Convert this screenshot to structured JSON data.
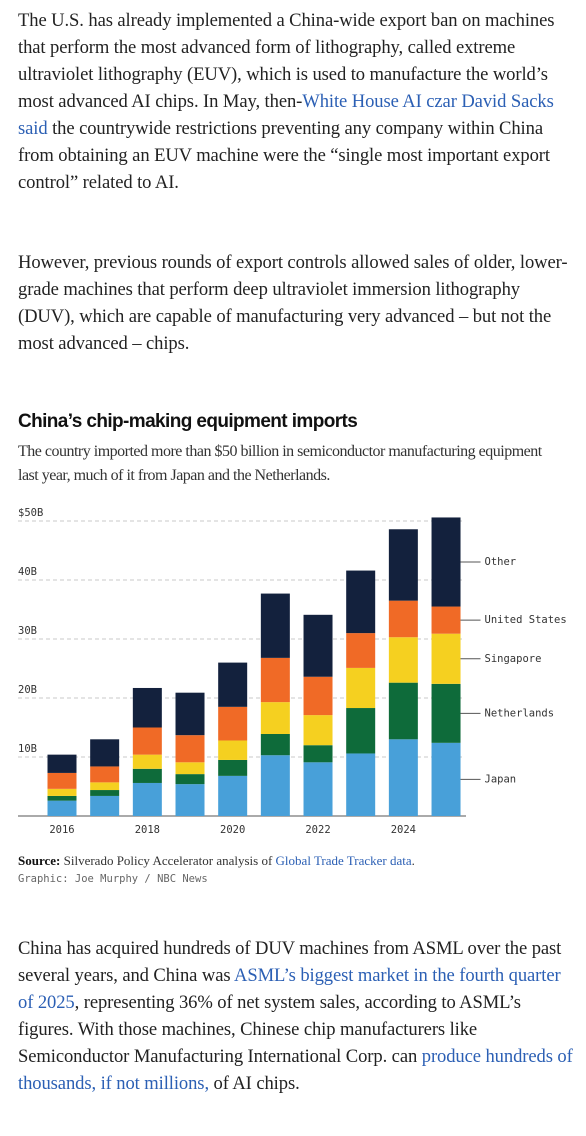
{
  "article": {
    "paragraphs_before": [
      [
        {
          "text": "The U.S. has already implemented a China-wide export ban on machines that perform the most advanced form of lithography, called extreme ultraviolet lithography (EUV), which is used to manufacture the world’s most advanced AI chips. In May, then-"
        },
        {
          "text": "White House AI czar David Sacks said",
          "link": true
        },
        {
          "text": " the countrywide restrictions preventing any company within China from obtaining an EUV machine were the “single most important export control” related to AI."
        }
      ],
      [
        {
          "text": "However, previous rounds of export controls allowed sales of older, lower-grade machines that perform deep ultraviolet immersion lithography (DUV), which are capable of manufacturing very advanced – but not the most advanced – chips."
        }
      ]
    ],
    "paragraphs_after": [
      [
        {
          "text": "China has acquired hundreds of DUV machines from ASML over the past several years, and China was "
        },
        {
          "text": "ASML’s biggest market in the fourth quarter of 2025",
          "link": true
        },
        {
          "text": ", representing 36% of net system sales, according to ASML’s figures. With those machines, Chinese chip manufacturers like Semiconductor Manufacturing International Corp. can "
        },
        {
          "text": "produce hundreds of thousands, if not millions,",
          "link": true
        },
        {
          "text": " of AI chips."
        }
      ]
    ]
  },
  "chart_data": {
    "type": "stacked_bar",
    "title": "China’s chip-making equipment imports",
    "subtitle": "The country imported more than $50 billion in semiconductor manufacturing equipment last year, much of it from Japan and the Netherlands.",
    "source_label": "Source:",
    "source_text": "Silverado Policy Accelerator analysis of",
    "source_link": "Global Trade Tracker data",
    "source_end": ".",
    "credit": "Graphic: Joe Murphy / NBC News",
    "categories": [
      "2016",
      null,
      "2018",
      null,
      "2020",
      null,
      "2022",
      null,
      "2024",
      null
    ],
    "series": [
      {
        "name": "Japan",
        "color": "#48a0d9",
        "values": [
          2.6,
          3.4,
          5.6,
          5.4,
          6.8,
          10.3,
          9.1,
          10.6,
          13.0,
          12.4
        ]
      },
      {
        "name": "Netherlands",
        "color": "#0e6b3a",
        "values": [
          0.8,
          1.0,
          2.4,
          1.7,
          2.7,
          3.6,
          2.9,
          7.7,
          9.6,
          10.0
        ]
      },
      {
        "name": "Singapore",
        "color": "#f5d020",
        "values": [
          1.2,
          1.3,
          2.4,
          2.0,
          3.3,
          5.4,
          5.1,
          6.8,
          7.7,
          8.5
        ]
      },
      {
        "name": "United States",
        "color": "#f06a26",
        "values": [
          2.7,
          2.7,
          4.6,
          4.6,
          5.7,
          7.5,
          6.5,
          5.9,
          6.2,
          4.6
        ]
      },
      {
        "name": "Other",
        "color": "#13213d",
        "values": [
          3.1,
          4.6,
          6.7,
          7.2,
          7.5,
          10.9,
          10.5,
          10.6,
          12.1,
          15.1
        ]
      }
    ],
    "ylim": [
      0,
      50
    ],
    "yticks": [
      {
        "value": 10,
        "label": "10B"
      },
      {
        "value": 20,
        "label": "20B"
      },
      {
        "value": 30,
        "label": "30B"
      },
      {
        "value": 40,
        "label": "40B"
      },
      {
        "value": 50,
        "label": "$50B"
      }
    ],
    "grid": true
  }
}
